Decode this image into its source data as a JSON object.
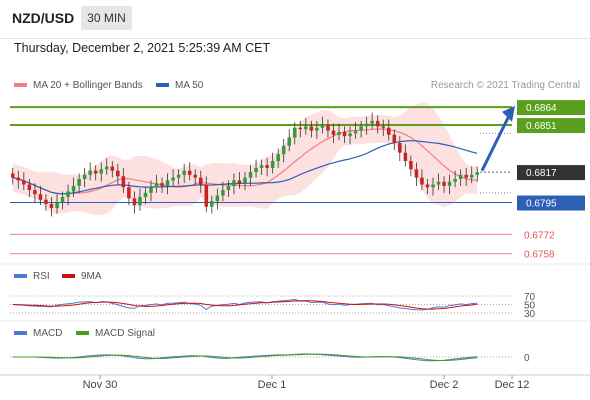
{
  "header": {
    "pair": "NZD/USD",
    "timeframe": "30 MIN"
  },
  "timestamp": "Thursday, December 2, 2021 5:25:39 AM CET",
  "legend": {
    "ma20": "MA 20 + Bollinger Bands",
    "ma50": "MA 50",
    "credit": "Research © 2021 Trading Central",
    "rsi": "RSI",
    "rsi_ma": "9MA",
    "macd": "MACD",
    "macd_signal": "MACD Signal"
  },
  "colors": {
    "resistance": "#5aa01e",
    "support": "#2d5fb4",
    "target": "#e05555",
    "current": "#333333",
    "ma20": "#f08080",
    "ma50": "#2d5fb4",
    "band": "#fde0e0",
    "candle_up": "#2e9e3a",
    "candle_down": "#cc2222",
    "arrow": "#2d5fb4"
  },
  "chart_data": {
    "type": "candlestick",
    "y_range": [
      0.6752,
      0.6872
    ],
    "levels": [
      {
        "label": "0.6864",
        "value": 0.6864,
        "kind": "resistance"
      },
      {
        "label": "0.6851",
        "value": 0.6851,
        "kind": "resistance"
      },
      {
        "label": "0.6817",
        "value": 0.6817,
        "kind": "current"
      },
      {
        "label": "0.6795",
        "value": 0.6795,
        "kind": "support"
      },
      {
        "label": "0.6772",
        "value": 0.6772,
        "kind": "target"
      },
      {
        "label": "0.6758",
        "value": 0.6758,
        "kind": "target"
      }
    ],
    "x_ticks": [
      "Nov 30",
      "Dec 1",
      "Dec 2",
      "Dec 12"
    ],
    "price_close": [
      0.6813,
      0.6811,
      0.6808,
      0.6804,
      0.6801,
      0.6797,
      0.6794,
      0.6791,
      0.6795,
      0.6799,
      0.6803,
      0.6807,
      0.6812,
      0.6815,
      0.6818,
      0.6816,
      0.6819,
      0.6821,
      0.6818,
      0.6814,
      0.6806,
      0.6798,
      0.6793,
      0.6799,
      0.6802,
      0.6806,
      0.6809,
      0.6807,
      0.6811,
      0.6813,
      0.6815,
      0.6818,
      0.6815,
      0.6813,
      0.6808,
      0.6792,
      0.6796,
      0.68,
      0.6804,
      0.6807,
      0.6811,
      0.6809,
      0.6813,
      0.6817,
      0.682,
      0.6822,
      0.682,
      0.6825,
      0.683,
      0.6836,
      0.6842,
      0.6849,
      0.6848,
      0.685,
      0.6847,
      0.6849,
      0.6851,
      0.6847,
      0.6844,
      0.6846,
      0.6843,
      0.6845,
      0.6847,
      0.685,
      0.6852,
      0.6854,
      0.685,
      0.6849,
      0.6844,
      0.6838,
      0.6831,
      0.6825,
      0.6819,
      0.6813,
      0.6808,
      0.6806,
      0.6808,
      0.681,
      0.6807,
      0.681,
      0.6812,
      0.6815,
      0.6813,
      0.6815,
      0.6817
    ],
    "rsi_levels": [
      70,
      50,
      30
    ],
    "macd_zero": 0
  }
}
